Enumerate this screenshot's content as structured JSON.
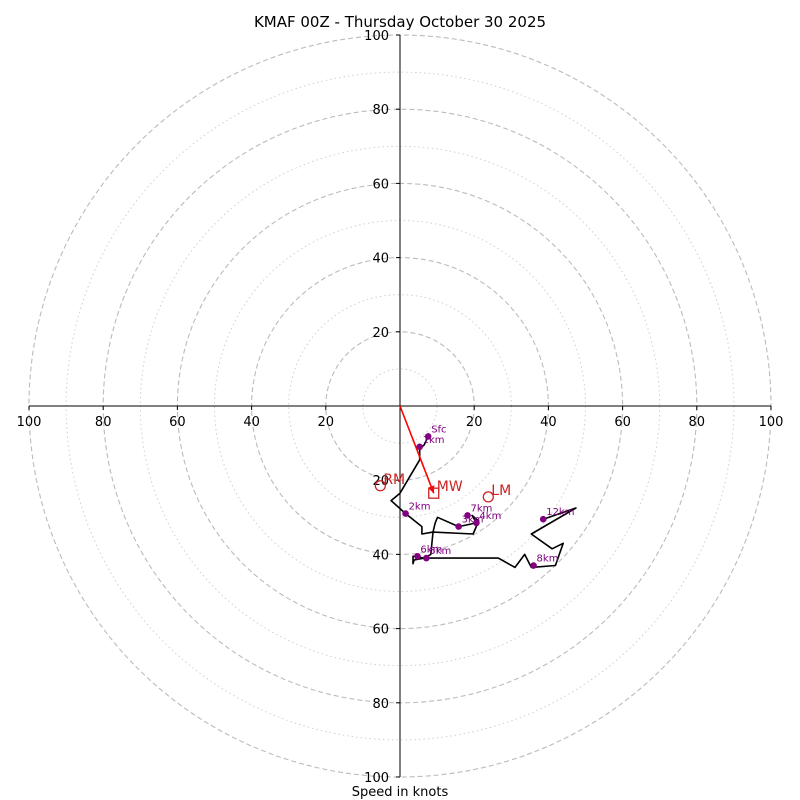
{
  "chart_data": {
    "type": "hodograph",
    "title": "KMAF 00Z - Thursday October 30 2025",
    "xlabel": "Speed in knots",
    "xlim": [
      -100,
      100
    ],
    "ylim": [
      -100,
      100
    ],
    "rings_major": [
      20,
      40,
      60,
      80,
      100
    ],
    "rings_minor": [
      10,
      30,
      50,
      70,
      90
    ],
    "x_tick_labels": [
      "100",
      "80",
      "60",
      "40",
      "20",
      "20",
      "40",
      "60",
      "80",
      "100"
    ],
    "x_tick_values": [
      -100,
      -80,
      -60,
      -40,
      -20,
      20,
      40,
      60,
      80,
      100
    ],
    "y_tick_labels": [
      "100",
      "80",
      "60",
      "40",
      "20",
      "20",
      "40",
      "60",
      "80",
      "100"
    ],
    "y_tick_values": [
      100,
      80,
      60,
      40,
      20,
      -20,
      -40,
      -60,
      -80,
      -100
    ],
    "hodograph_trace": [
      [
        7.6,
        -8.2
      ],
      [
        6.5,
        -10.5
      ],
      [
        5.3,
        -11.5
      ],
      [
        5.3,
        -14.5
      ],
      [
        0,
        -23.5
      ],
      [
        -2.4,
        -25.5
      ],
      [
        1.5,
        -29
      ],
      [
        5.9,
        -32.5
      ],
      [
        5.9,
        -34.5
      ],
      [
        8.9,
        -34
      ],
      [
        9.5,
        -31.5
      ],
      [
        10.1,
        -30
      ],
      [
        15.8,
        -32.5
      ],
      [
        20.6,
        -31.5
      ],
      [
        19.4,
        -29.5
      ],
      [
        21.2,
        -31
      ],
      [
        19.7,
        -34.5
      ],
      [
        8.9,
        -34
      ],
      [
        8.3,
        -40
      ],
      [
        6.5,
        -41
      ],
      [
        3.8,
        -41.5
      ],
      [
        3.5,
        -42.5
      ],
      [
        3.5,
        -40.5
      ],
      [
        4.1,
        -40.5
      ],
      [
        6.5,
        -41
      ],
      [
        26.5,
        -41
      ],
      [
        31.0,
        -43.5
      ],
      [
        33.6,
        -40
      ],
      [
        35.4,
        -43.5
      ],
      [
        41.9,
        -43
      ],
      [
        44.0,
        -37
      ],
      [
        41.0,
        -38.5
      ],
      [
        35.4,
        -34.5
      ],
      [
        47.4,
        -27.5
      ],
      [
        38.6,
        -30.5
      ]
    ],
    "height_markers": [
      {
        "label": "Sfc",
        "u": 7.6,
        "v": -8.2
      },
      {
        "label": "1km",
        "u": 5.3,
        "v": -11.0
      },
      {
        "label": "2km",
        "u": 1.5,
        "v": -29.0
      },
      {
        "label": "3km",
        "u": 15.8,
        "v": -32.5
      },
      {
        "label": "4km",
        "u": 20.6,
        "v": -31.5
      },
      {
        "label": "7km",
        "u": 18.2,
        "v": -29.5
      },
      {
        "label": "5km",
        "u": 7.1,
        "v": -41.0
      },
      {
        "label": "6km",
        "u": 4.7,
        "v": -40.5
      },
      {
        "label": "8km",
        "u": 36.0,
        "v": -43.0
      },
      {
        "label": "12km",
        "u": 38.6,
        "v": -30.5
      }
    ],
    "motion_markers": [
      {
        "label": "RM",
        "u": -5.3,
        "v": -21.5,
        "marker": "circle"
      },
      {
        "label": "MW",
        "u": 9.1,
        "v": -23.5,
        "marker": "square"
      },
      {
        "label": "LM",
        "u": 23.8,
        "v": -24.5,
        "marker": "circle"
      }
    ],
    "storm_motion_vector": {
      "from": [
        0,
        0
      ],
      "to": [
        9.1,
        -23.5
      ]
    },
    "colors": {
      "trace": "#000000",
      "height_marker": "#800080",
      "motion": "#cc2222",
      "vector": "#ff0000",
      "ring": "#bbbbbb",
      "axis": "#000000"
    }
  }
}
